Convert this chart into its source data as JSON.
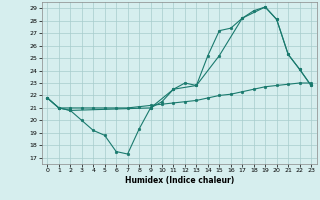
{
  "xlabel": "Humidex (Indice chaleur)",
  "xlim": [
    -0.5,
    23.5
  ],
  "ylim": [
    16.5,
    29.5
  ],
  "yticks": [
    17,
    18,
    19,
    20,
    21,
    22,
    23,
    24,
    25,
    26,
    27,
    28,
    29
  ],
  "xticks": [
    0,
    1,
    2,
    3,
    4,
    5,
    6,
    7,
    8,
    9,
    10,
    11,
    12,
    13,
    14,
    15,
    16,
    17,
    18,
    19,
    20,
    21,
    22,
    23
  ],
  "bg_color": "#d6eeee",
  "grid_color": "#a8cccc",
  "line_color": "#1a7a6e",
  "line1_x": [
    0,
    1,
    2,
    3,
    4,
    5,
    6,
    7,
    8,
    9,
    10,
    11,
    12,
    13,
    14,
    15,
    16,
    17,
    18,
    19,
    20,
    21,
    22,
    23
  ],
  "line1_y": [
    21.8,
    21.0,
    20.8,
    20.0,
    19.2,
    18.8,
    17.5,
    17.3,
    19.3,
    21.0,
    21.5,
    22.5,
    23.0,
    22.8,
    25.2,
    27.2,
    27.4,
    28.2,
    28.8,
    29.1,
    28.1,
    25.3,
    24.1,
    22.8
  ],
  "line2_x": [
    0,
    1,
    2,
    3,
    4,
    5,
    6,
    7,
    8,
    9,
    10,
    11,
    12,
    13,
    14,
    15,
    16,
    17,
    18,
    19,
    20,
    21,
    22,
    23
  ],
  "line2_y": [
    21.8,
    21.0,
    21.0,
    21.0,
    21.0,
    21.0,
    21.0,
    21.0,
    21.1,
    21.2,
    21.3,
    21.4,
    21.5,
    21.6,
    21.8,
    22.0,
    22.1,
    22.3,
    22.5,
    22.7,
    22.8,
    22.9,
    23.0,
    23.0
  ],
  "line3_x": [
    0,
    1,
    2,
    9,
    11,
    13,
    15,
    17,
    19,
    20,
    21,
    22,
    23
  ],
  "line3_y": [
    21.8,
    21.0,
    20.8,
    21.0,
    22.5,
    22.8,
    25.2,
    28.2,
    29.1,
    28.1,
    25.3,
    24.1,
    22.8
  ]
}
